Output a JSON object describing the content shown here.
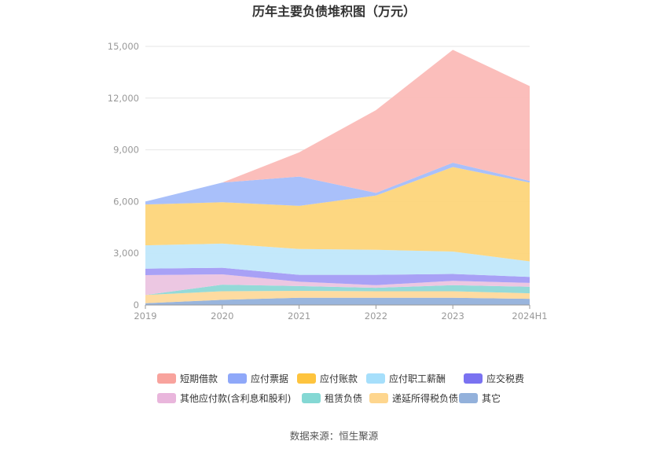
{
  "chart_data": {
    "type": "area",
    "stacked": true,
    "title": "历年主要负债堆积图（万元）",
    "categories": [
      "2019",
      "2020",
      "2021",
      "2022",
      "2023",
      "2024H1"
    ],
    "ylim": [
      0,
      15000
    ],
    "yticks": [
      "0",
      "3,000",
      "6,000",
      "9,000",
      "12,000",
      "15,000"
    ],
    "ytick_values": [
      0,
      3000,
      6000,
      9000,
      12000,
      15000
    ],
    "grid": true,
    "legend_position": "bottom",
    "series": [
      {
        "name": "其它",
        "color": "#93b1db",
        "values": [
          100,
          300,
          420,
          420,
          420,
          360
        ]
      },
      {
        "name": "递延所得税负债",
        "color": "#fed99b",
        "values": [
          480,
          500,
          400,
          380,
          380,
          320
        ]
      },
      {
        "name": "租赁负债",
        "color": "#8ed8d6",
        "values": [
          0,
          380,
          280,
          200,
          350,
          380
        ]
      },
      {
        "name": "其他应付款(含利息和股利)",
        "color": "#ebc4e0",
        "values": [
          1150,
          600,
          250,
          150,
          250,
          220
        ]
      },
      {
        "name": "应交税费",
        "color": "#a39cf5",
        "values": [
          380,
          380,
          400,
          600,
          400,
          350
        ]
      },
      {
        "name": "应付职工薪酬",
        "color": "#c0e7fb",
        "values": [
          1350,
          1400,
          1500,
          1450,
          1300,
          900
        ]
      },
      {
        "name": "应付账款",
        "color": "#fdd57a",
        "values": [
          2370,
          2400,
          2500,
          3150,
          4900,
          4570
        ]
      },
      {
        "name": "应付票据",
        "color": "#a4bdfa",
        "values": [
          170,
          1140,
          1700,
          150,
          250,
          100
        ]
      },
      {
        "name": "短期借款",
        "color": "#fbbbb7",
        "values": [
          0,
          0,
          1400,
          4800,
          6550,
          5500
        ]
      }
    ],
    "legend": [
      {
        "name": "短期借款",
        "color": "#f8a39d"
      },
      {
        "name": "应付票据",
        "color": "#8fa8f9"
      },
      {
        "name": "应付账款",
        "color": "#fec43e"
      },
      {
        "name": "应付职工薪酬",
        "color": "#a6dffb"
      },
      {
        "name": "应交税费",
        "color": "#7a72f1"
      },
      {
        "name": "其他应付款(含利息和股利)",
        "color": "#e9b6dc"
      },
      {
        "name": "租赁负债",
        "color": "#84d8d4"
      },
      {
        "name": "递延所得税负债",
        "color": "#fed68e"
      },
      {
        "name": "其它",
        "color": "#93b1db"
      }
    ]
  },
  "footer": {
    "source": "数据来源：恒生聚源"
  }
}
